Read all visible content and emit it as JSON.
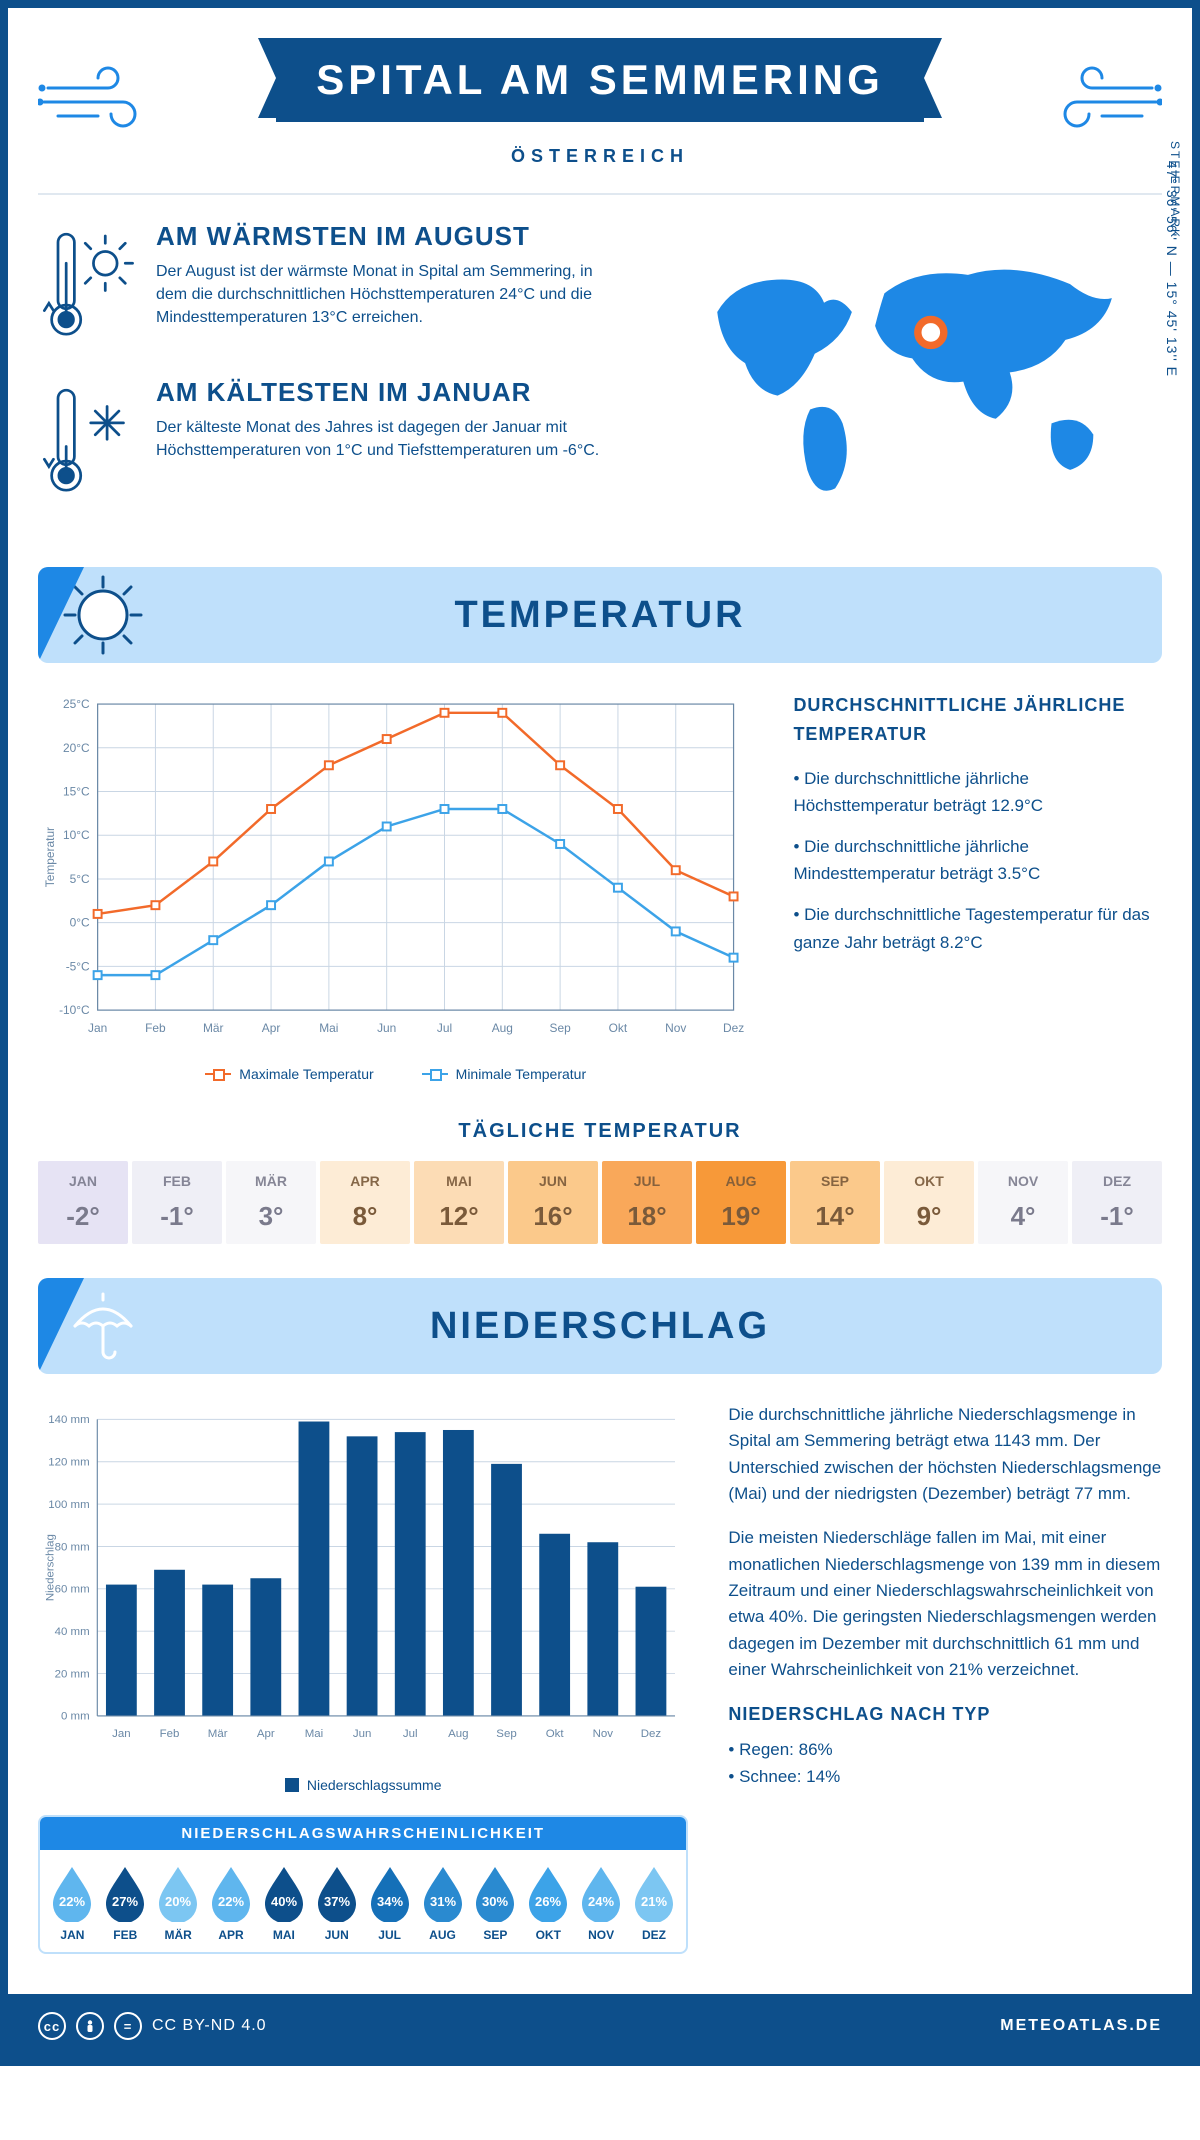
{
  "header": {
    "title": "SPITAL AM SEMMERING",
    "country": "ÖSTERREICH",
    "region": "STEIERMARK",
    "coords": "47° 36' 56'' N — 15° 45' 13'' E"
  },
  "intro": {
    "warm": {
      "title": "AM WÄRMSTEN IM AUGUST",
      "text": "Der August ist der wärmste Monat in Spital am Semmering, in dem die durchschnittlichen Höchsttemperaturen 24°C und die Mindesttemperaturen 13°C erreichen."
    },
    "cold": {
      "title": "AM KÄLTESTEN IM JANUAR",
      "text": "Der kälteste Monat des Jahres ist dagegen der Januar mit Höchsttemperaturen von 1°C und Tiefsttemperaturen um -6°C."
    }
  },
  "sections": {
    "temperature": "TEMPERATUR",
    "precipitation": "NIEDERSCHLAG",
    "daily": "TÄGLICHE TEMPERATUR",
    "prob_title": "NIEDERSCHLAGSWAHRSCHEINLICHKEIT"
  },
  "temp_side": {
    "heading": "DURCHSCHNITTLICHE JÄHRLICHE TEMPERATUR",
    "b1": "• Die durchschnittliche jährliche Höchsttemperatur beträgt 12.9°C",
    "b2": "• Die durchschnittliche jährliche Mindesttemperatur beträgt 3.5°C",
    "b3": "• Die durchschnittliche Tagestemperatur für das ganze Jahr beträgt 8.2°C"
  },
  "temp_chart": {
    "type": "line",
    "months": [
      "Jan",
      "Feb",
      "Mär",
      "Apr",
      "Mai",
      "Jun",
      "Jul",
      "Aug",
      "Sep",
      "Okt",
      "Nov",
      "Dez"
    ],
    "max": {
      "label": "Maximale Temperatur",
      "color": "#f26a2a",
      "values": [
        1,
        2,
        7,
        13,
        18,
        21,
        24,
        24,
        18,
        13,
        6,
        3
      ]
    },
    "min": {
      "label": "Minimale Temperatur",
      "color": "#3ca3e8",
      "values": [
        -6,
        -6,
        -2,
        2,
        7,
        11,
        13,
        13,
        9,
        4,
        -1,
        -4
      ]
    },
    "ylim": [
      -10,
      25
    ],
    "ystep": 5,
    "ylabel": "Temperatur",
    "grid_color": "#c9d6e4",
    "axis_color": "#6a88a6",
    "bg": "#ffffff",
    "label_fontsize": 12
  },
  "daily_temp": {
    "months": [
      "JAN",
      "FEB",
      "MÄR",
      "APR",
      "MAI",
      "JUN",
      "JUL",
      "AUG",
      "SEP",
      "OKT",
      "NOV",
      "DEZ"
    ],
    "values": [
      "-2°",
      "-1°",
      "3°",
      "8°",
      "12°",
      "16°",
      "18°",
      "19°",
      "14°",
      "9°",
      "4°",
      "-1°"
    ],
    "bg": [
      "#e6e3f4",
      "#efeff6",
      "#f6f6f9",
      "#fdecd6",
      "#fcdcb5",
      "#fbc98b",
      "#f9a85a",
      "#f79939",
      "#fbc98b",
      "#fdecd6",
      "#f6f6f9",
      "#efeff6"
    ],
    "text": "#7a7a8c",
    "text_warm": "#7a5a3a"
  },
  "precip_chart": {
    "type": "bar",
    "months": [
      "Jan",
      "Feb",
      "Mär",
      "Apr",
      "Mai",
      "Jun",
      "Jul",
      "Aug",
      "Sep",
      "Okt",
      "Nov",
      "Dez"
    ],
    "values": [
      62,
      69,
      62,
      65,
      139,
      132,
      134,
      135,
      119,
      86,
      82,
      61
    ],
    "bar_color": "#0d4f8b",
    "ylim": [
      0,
      140
    ],
    "ystep": 20,
    "ylabel": "Niederschlag",
    "legend": "Niederschlagssumme",
    "grid_color": "#c9d6e4",
    "axis_color": "#6a88a6",
    "label_fontsize": 12
  },
  "precip_text": {
    "p1": "Die durchschnittliche jährliche Niederschlagsmenge in Spital am Semmering beträgt etwa 1143 mm. Der Unterschied zwischen der höchsten Niederschlagsmenge (Mai) und der niedrigsten (Dezember) beträgt 77 mm.",
    "p2": "Die meisten Niederschläge fallen im Mai, mit einer monatlichen Niederschlagsmenge von 139 mm in diesem Zeitraum und einer Niederschlagswahrscheinlichkeit von etwa 40%. Die geringsten Niederschlagsmengen werden dagegen im Dezember mit durchschnittlich 61 mm und einer Wahrscheinlichkeit von 21% verzeichnet.",
    "type_head": "NIEDERSCHLAG NACH TYP",
    "type_1": "• Regen: 86%",
    "type_2": "• Schnee: 14%"
  },
  "precip_prob": {
    "months": [
      "JAN",
      "FEB",
      "MÄR",
      "APR",
      "MAI",
      "JUN",
      "JUL",
      "AUG",
      "SEP",
      "OKT",
      "NOV",
      "DEZ"
    ],
    "values": [
      "22%",
      "27%",
      "20%",
      "22%",
      "40%",
      "37%",
      "34%",
      "31%",
      "30%",
      "26%",
      "24%",
      "21%"
    ],
    "colors": [
      "#5fb6ee",
      "#0d4f8b",
      "#7cc6f2",
      "#5fb6ee",
      "#0d4f8b",
      "#0d4f8b",
      "#1570b8",
      "#2a8ad0",
      "#2a8ad0",
      "#3ca3e8",
      "#5fb6ee",
      "#7cc6f2"
    ]
  },
  "footer": {
    "license": "CC BY-ND 4.0",
    "brand": "METEOATLAS.DE"
  }
}
